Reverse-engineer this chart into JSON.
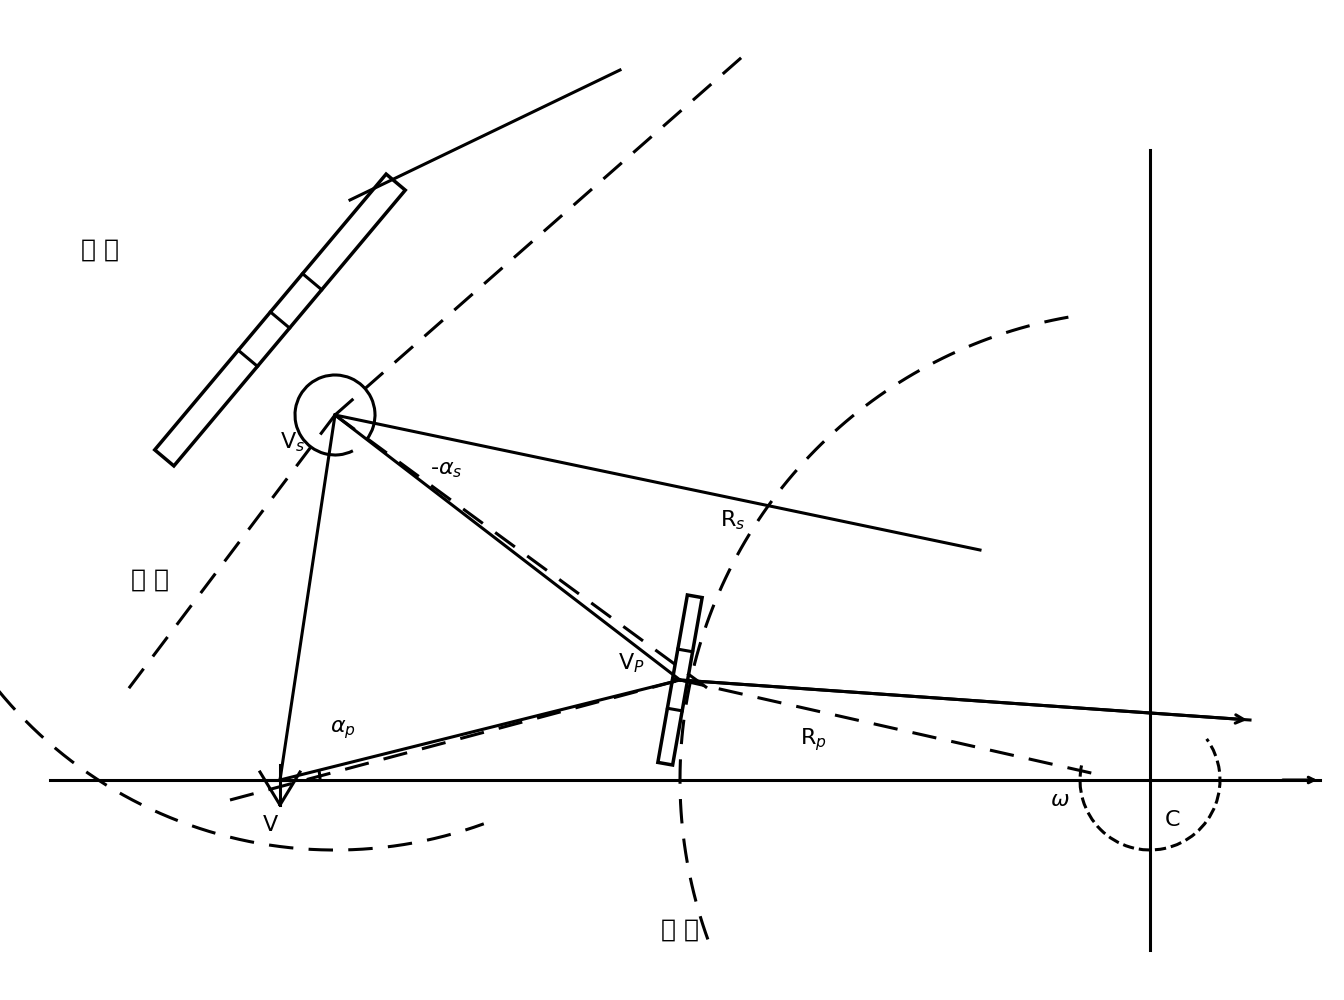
{
  "bg_color": "#ffffff",
  "line_color": "#000000",
  "figsize": [
    13.44,
    10.0
  ],
  "dpi": 100,
  "title": "",
  "labels": {
    "ci_jing": "次 镜",
    "zhu_jing": "主 镜",
    "guang_lan": "光 阑",
    "Vs": "V$_s$",
    "Vp": "V$_P$",
    "V": "V",
    "C": "C",
    "Rs": "R$_s$",
    "Rp": "R$_p$",
    "alpha_s": "-$\\alpha_s$",
    "alpha_p": "$\\alpha_p$",
    "omega": "$\\omega$"
  }
}
